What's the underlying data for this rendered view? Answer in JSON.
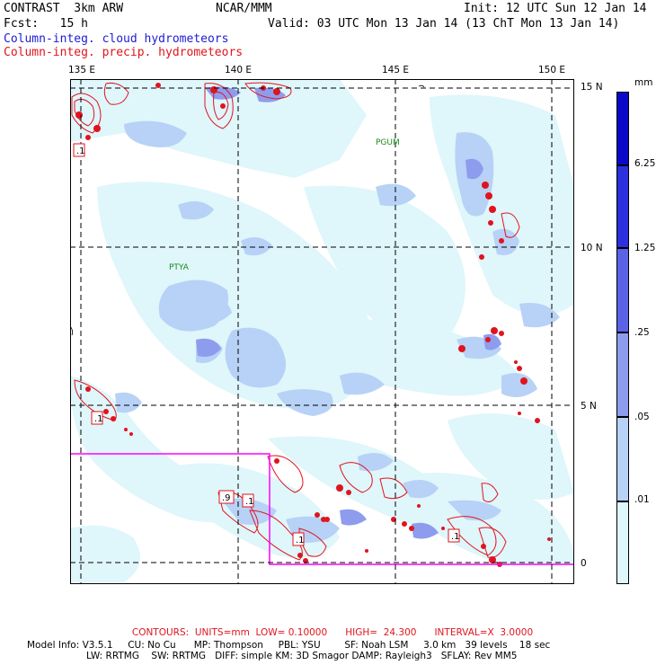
{
  "header": {
    "model": "CONTRAST  3km ARW",
    "org": "NCAR/MMM",
    "init": "Init: 12 UTC Sun 12 Jan 14",
    "fcst": "Fcst:   15 h",
    "valid": "Valid: 03 UTC Mon 13 Jan 14 (13 ChT Mon 13 Jan 14)",
    "legend_cloud": "Column-integ. cloud hydrometeors",
    "legend_precip": "Column-integ. precip. hydrometeors"
  },
  "map": {
    "lon_labels": [
      "135 E",
      "140 E",
      "145 E",
      "150 E"
    ],
    "lat_labels": [
      "15 N",
      "10 N",
      "5 N",
      "0"
    ],
    "stations": [
      "PGUM",
      "PTYA"
    ],
    "contour_labels": [
      ".1",
      ".1",
      ".9",
      ".1",
      ".1",
      ".1"
    ]
  },
  "colorbar": {
    "unit": "mm",
    "levels": [
      "6.25",
      "1.25",
      ".25",
      ".05",
      ".01"
    ],
    "colors": [
      "#ffffff",
      "#dff6fb",
      "#b7d2f6",
      "#8e9cee",
      "#5a63e6",
      "#2c30dd",
      "#0a08c9"
    ]
  },
  "footer": {
    "contours": "CONTOURS:  UNITS=mm  LOW= 0.10000      HIGH=  24.300      INTERVAL=X  3.0000",
    "model_info": "Model Info: V3.5.1     CU: No Cu      MP: Thompson     PBL: YSU        SF: Noah LSM     3.0 km   39 levels    18 sec",
    "model_info2": "LW: RRTMG    SW: RRTMG   DIFF: simple KM: 3D Smagor DAMP: Rayleigh3   SFLAY: Rev MM5"
  }
}
